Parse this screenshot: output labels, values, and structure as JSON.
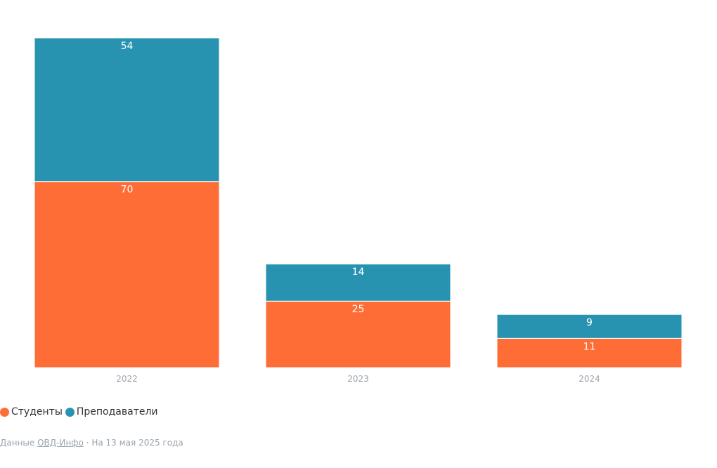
{
  "chart_data": {
    "type": "bar",
    "stacked": true,
    "categories": [
      "2022",
      "2023",
      "2024"
    ],
    "series": [
      {
        "name": "Студенты",
        "values": [
          70,
          25,
          11
        ],
        "color": "#ff6d36"
      },
      {
        "name": "Преподаватели",
        "values": [
          54,
          14,
          9
        ],
        "color": "#2893b0"
      }
    ],
    "data_labels": true,
    "ylim": [
      0,
      124
    ],
    "legend_position": "bottom-left",
    "grid": false
  },
  "footer": {
    "prefix": "Данные ",
    "source_link": "ОВД-Инфо",
    "suffix": " · На 13 мая 2025 года"
  }
}
